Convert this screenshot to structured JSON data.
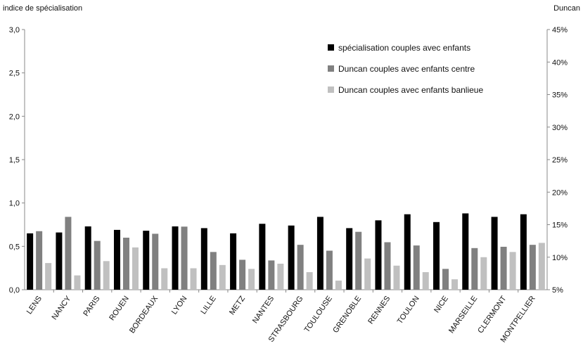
{
  "chart_data": {
    "type": "bar",
    "title": "",
    "ylabel_left": "indice de spécialisation",
    "ylabel_right": "Duncan",
    "ylim_left": [
      0,
      3.0
    ],
    "ylim_right": [
      5,
      45
    ],
    "yticks_left": [
      "0,0",
      "0,5",
      "1,0",
      "1,5",
      "2,0",
      "2,5",
      "3,0"
    ],
    "yticks_right": [
      "5%",
      "10%",
      "15%",
      "20%",
      "25%",
      "30%",
      "35%",
      "40%",
      "45%"
    ],
    "categories": [
      "LENS",
      "NANCY",
      "PARIS",
      "ROUEN",
      "BORDEAUX",
      "LYON",
      "LILLE",
      "METZ",
      "NANTES",
      "STRASBOURG",
      "TOULOUSE",
      "GRENOBLE",
      "RENNES",
      "TOULON",
      "NICE",
      "MARSEILLE",
      "CLERMONT",
      "MONTPELLIER"
    ],
    "series": [
      {
        "name": "spécialisation couples avec enfants",
        "axis": "left",
        "color": "#000000",
        "values": [
          0.65,
          0.66,
          0.73,
          0.69,
          0.68,
          0.73,
          0.71,
          0.65,
          0.76,
          0.74,
          0.84,
          0.71,
          0.8,
          0.87,
          0.78,
          0.88,
          0.84,
          0.87
        ]
      },
      {
        "name": "Duncan couples avec enfants centre",
        "axis": "right",
        "color": "#808080",
        "values": [
          14.0,
          16.2,
          12.5,
          13.0,
          13.6,
          14.7,
          10.8,
          9.6,
          9.5,
          11.9,
          11.0,
          13.9,
          12.3,
          11.8,
          8.2,
          11.4,
          11.6,
          11.9
        ]
      },
      {
        "name": "Duncan couples avec enfants banlieue",
        "axis": "right",
        "color": "#c0c0c0",
        "values": [
          9.1,
          7.2,
          9.4,
          11.5,
          8.3,
          8.3,
          8.8,
          8.2,
          9.0,
          7.7,
          6.4,
          9.8,
          8.7,
          7.7,
          6.6,
          10.0,
          10.8,
          12.2
        ]
      }
    ],
    "legend_position": "top-right",
    "grid": false
  }
}
